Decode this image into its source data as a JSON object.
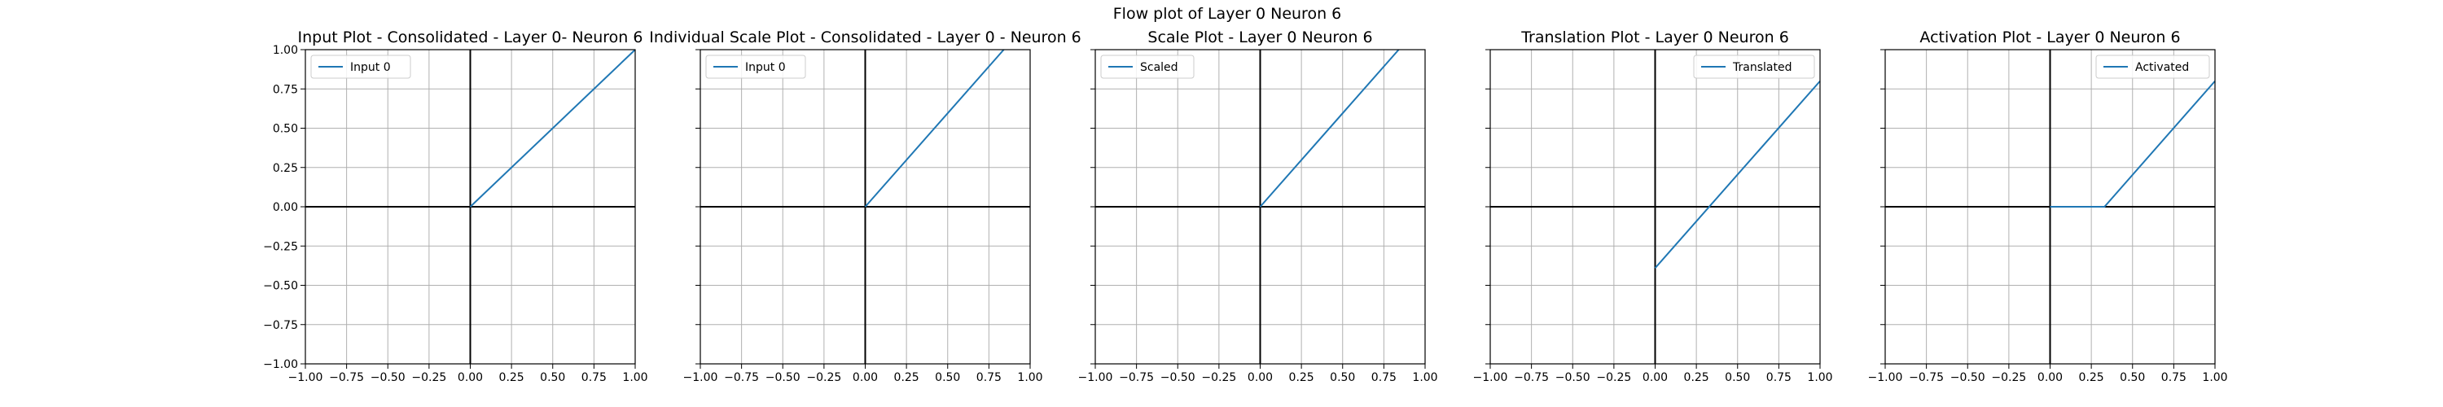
{
  "figure": {
    "suptitle": "Flow plot of Layer 0 Neuron 6"
  },
  "chart_data": [
    {
      "type": "line",
      "title": "Input Plot - Consolidated - Layer 0- Neuron 6",
      "xlim": [
        -1.0,
        1.0
      ],
      "ylim": [
        -1.0,
        1.0
      ],
      "xticks": [
        -1.0,
        -0.75,
        -0.5,
        -0.25,
        0.0,
        0.25,
        0.5,
        0.75,
        1.0
      ],
      "yticks": [
        -1.0,
        -0.75,
        -0.5,
        -0.25,
        0.0,
        0.25,
        0.5,
        0.75,
        1.0
      ],
      "xtick_labels": [
        "−1.00",
        "−0.75",
        "−0.50",
        "−0.25",
        "0.00",
        "0.25",
        "0.50",
        "0.75",
        "1.00"
      ],
      "ytick_labels": [
        "−1.00",
        "−0.75",
        "−0.50",
        "−0.25",
        "0.00",
        "0.25",
        "0.50",
        "0.75",
        "1.00"
      ],
      "show_ytick_labels": true,
      "grid": true,
      "legend_loc": "upper-left",
      "series": [
        {
          "name": "Input 0",
          "color": "#1f77b4",
          "x": [
            0.0,
            1.0
          ],
          "y": [
            0.0,
            1.0
          ]
        }
      ]
    },
    {
      "type": "line",
      "title": "Individual Scale Plot - Consolidated - Layer 0 - Neuron 6",
      "xlim": [
        -1.0,
        1.0
      ],
      "ylim": [
        -1.0,
        1.0
      ],
      "xticks": [
        -1.0,
        -0.75,
        -0.5,
        -0.25,
        0.0,
        0.25,
        0.5,
        0.75,
        1.0
      ],
      "yticks": [
        -1.0,
        -0.75,
        -0.5,
        -0.25,
        0.0,
        0.25,
        0.5,
        0.75,
        1.0
      ],
      "xtick_labels": [
        "−1.00",
        "−0.75",
        "−0.50",
        "−0.25",
        "0.00",
        "0.25",
        "0.50",
        "0.75",
        "1.00"
      ],
      "ytick_labels": [],
      "show_ytick_labels": false,
      "grid": true,
      "legend_loc": "upper-left",
      "series": [
        {
          "name": "Input 0",
          "color": "#1f77b4",
          "x": [
            0.0,
            0.84
          ],
          "y": [
            0.0,
            1.0
          ]
        }
      ]
    },
    {
      "type": "line",
      "title": "Scale Plot - Layer 0 Neuron 6",
      "xlim": [
        -1.0,
        1.0
      ],
      "ylim": [
        -1.0,
        1.0
      ],
      "xticks": [
        -1.0,
        -0.75,
        -0.5,
        -0.25,
        0.0,
        0.25,
        0.5,
        0.75,
        1.0
      ],
      "yticks": [
        -1.0,
        -0.75,
        -0.5,
        -0.25,
        0.0,
        0.25,
        0.5,
        0.75,
        1.0
      ],
      "xtick_labels": [
        "−1.00",
        "−0.75",
        "−0.50",
        "−0.25",
        "0.00",
        "0.25",
        "0.50",
        "0.75",
        "1.00"
      ],
      "ytick_labels": [],
      "show_ytick_labels": false,
      "grid": true,
      "legend_loc": "upper-left",
      "series": [
        {
          "name": "Scaled",
          "color": "#1f77b4",
          "x": [
            0.0,
            0.84
          ],
          "y": [
            0.0,
            1.0
          ]
        }
      ]
    },
    {
      "type": "line",
      "title": "Translation Plot - Layer 0 Neuron 6",
      "xlim": [
        -1.0,
        1.0
      ],
      "ylim": [
        -1.0,
        1.0
      ],
      "xticks": [
        -1.0,
        -0.75,
        -0.5,
        -0.25,
        0.0,
        0.25,
        0.5,
        0.75,
        1.0
      ],
      "yticks": [
        -1.0,
        -0.75,
        -0.5,
        -0.25,
        0.0,
        0.25,
        0.5,
        0.75,
        1.0
      ],
      "xtick_labels": [
        "−1.00",
        "−0.75",
        "−0.50",
        "−0.25",
        "0.00",
        "0.25",
        "0.50",
        "0.75",
        "1.00"
      ],
      "ytick_labels": [],
      "show_ytick_labels": false,
      "grid": true,
      "legend_loc": "upper-right",
      "series": [
        {
          "name": "Translated",
          "color": "#1f77b4",
          "x": [
            0.0,
            1.0
          ],
          "y": [
            -0.39,
            0.8
          ]
        }
      ]
    },
    {
      "type": "line",
      "title": "Activation Plot - Layer 0 Neuron 6",
      "xlim": [
        -1.0,
        1.0
      ],
      "ylim": [
        -1.0,
        1.0
      ],
      "xticks": [
        -1.0,
        -0.75,
        -0.5,
        -0.25,
        0.0,
        0.25,
        0.5,
        0.75,
        1.0
      ],
      "yticks": [
        -1.0,
        -0.75,
        -0.5,
        -0.25,
        0.0,
        0.25,
        0.5,
        0.75,
        1.0
      ],
      "xtick_labels": [
        "−1.00",
        "−0.75",
        "−0.50",
        "−0.25",
        "0.00",
        "0.25",
        "0.50",
        "0.75",
        "1.00"
      ],
      "ytick_labels": [],
      "show_ytick_labels": false,
      "grid": true,
      "legend_loc": "upper-right",
      "series": [
        {
          "name": "Activated",
          "color": "#1f77b4",
          "x": [
            0.0,
            0.33,
            1.0
          ],
          "y": [
            0.0,
            0.0,
            0.8
          ]
        }
      ]
    }
  ]
}
